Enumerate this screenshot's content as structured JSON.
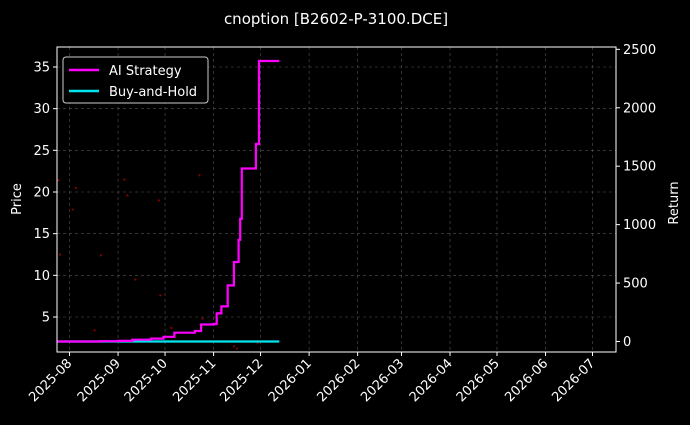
{
  "chart_data": {
    "type": "line",
    "title": "cnoption [B2602-P-3100.DCE]",
    "xlabel": "",
    "ylabel_left": "Price",
    "ylabel_right": "Return",
    "xlim": [
      "2025-07-24",
      "2026-07-16"
    ],
    "ylim_left": [
      0.8,
      37.4
    ],
    "ylim_right": [
      -90,
      2520
    ],
    "x_ticks": [
      "2025-08",
      "2025-09",
      "2025-10",
      "2025-11",
      "2025-12",
      "2026-01",
      "2026-02",
      "2026-03",
      "2026-04",
      "2026-05",
      "2026-06",
      "2026-07"
    ],
    "y_ticks_left": [
      5,
      10,
      15,
      20,
      25,
      30,
      35
    ],
    "y_ticks_right": [
      0,
      500,
      1000,
      1500,
      2000,
      2500
    ],
    "grid": true,
    "legend_position": "top-left",
    "colors": {
      "background": "#000000",
      "ai_strategy": "#ff00ff",
      "buy_and_hold": "#00e5ee",
      "price_points": "#8b0000",
      "grid": "#555555",
      "text": "#ffffff"
    },
    "series": [
      {
        "name": "AI Strategy",
        "axis": "right",
        "step": true,
        "points": [
          [
            "2025-07-24",
            0
          ],
          [
            "2025-08-20",
            2
          ],
          [
            "2025-09-01",
            5
          ],
          [
            "2025-09-10",
            15
          ],
          [
            "2025-09-22",
            25
          ],
          [
            "2025-09-30",
            40
          ],
          [
            "2025-10-07",
            75
          ],
          [
            "2025-10-20",
            90
          ],
          [
            "2025-10-24",
            145
          ],
          [
            "2025-11-01",
            150
          ],
          [
            "2025-11-03",
            240
          ],
          [
            "2025-11-06",
            300
          ],
          [
            "2025-11-10",
            480
          ],
          [
            "2025-11-14",
            680
          ],
          [
            "2025-11-17",
            870
          ],
          [
            "2025-11-18",
            1050
          ],
          [
            "2025-11-19",
            1480
          ],
          [
            "2025-11-28",
            1690
          ],
          [
            "2025-11-30",
            2400
          ],
          [
            "2025-12-13",
            2400
          ]
        ]
      },
      {
        "name": "Buy-and-Hold",
        "axis": "right",
        "step": false,
        "points": [
          [
            "2025-07-24",
            0
          ],
          [
            "2025-12-13",
            0
          ]
        ]
      },
      {
        "name": "",
        "axis": "left",
        "kind": "scatter",
        "points": [
          [
            "2025-07-25",
            21.4
          ],
          [
            "2025-07-26",
            12.5
          ],
          [
            "2025-08-03",
            17.9
          ],
          [
            "2025-08-05",
            20.5
          ],
          [
            "2025-08-17",
            3.4
          ],
          [
            "2025-08-21",
            12.4
          ],
          [
            "2025-09-05",
            21.5
          ],
          [
            "2025-09-07",
            19.6
          ],
          [
            "2025-09-12",
            9.5
          ],
          [
            "2025-09-27",
            19.0
          ],
          [
            "2025-09-28",
            7.6
          ],
          [
            "2025-10-05",
            3.7
          ],
          [
            "2025-10-23",
            22.0
          ],
          [
            "2025-10-25",
            4.8
          ],
          [
            "2025-11-14",
            1.5
          ],
          [
            "2025-11-16",
            1.2
          ],
          [
            "2025-11-29",
            1.9
          ]
        ]
      }
    ]
  }
}
